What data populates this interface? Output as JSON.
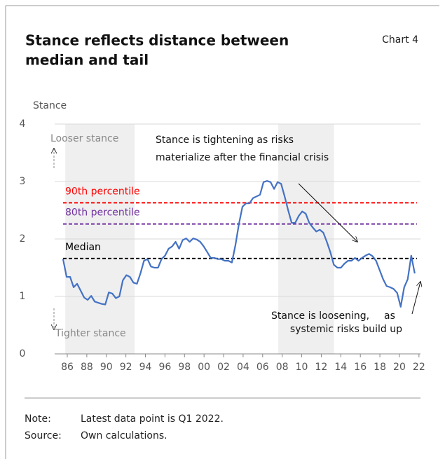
{
  "chart_data": {
    "type": "line",
    "title": [
      "Stance reflects distance between",
      "median and tail"
    ],
    "chart_label": "Chart 4",
    "y_label": "Stance",
    "x": [
      1985.57,
      1985.93,
      1986.29,
      1986.65,
      1987.01,
      1987.37,
      1987.73,
      1988.09,
      1988.45,
      1988.81,
      1989.17,
      1989.53,
      1989.89,
      1990.25,
      1990.61,
      1990.97,
      1991.33,
      1991.69,
      1992.05,
      1992.41,
      1992.77,
      1993.13,
      1993.49,
      1993.85,
      1994.21,
      1994.57,
      1994.93,
      1995.29,
      1995.65,
      1996.01,
      1996.37,
      1996.73,
      1997.09,
      1997.45,
      1997.81,
      1998.17,
      1998.53,
      1998.89,
      1999.25,
      1999.61,
      1999.97,
      2000.33,
      2000.69,
      2001.05,
      2001.41,
      2001.77,
      2002.13,
      2002.49,
      2002.85,
      2003.21,
      2003.57,
      2003.93,
      2004.29,
      2004.65,
      2005.01,
      2005.37,
      2005.73,
      2006.09,
      2006.45,
      2006.81,
      2007.17,
      2007.53,
      2007.89,
      2008.25,
      2008.61,
      2008.97,
      2009.33,
      2009.69,
      2010.05,
      2010.41,
      2010.77,
      2011.13,
      2011.49,
      2011.85,
      2012.21,
      2012.57,
      2012.93,
      2013.29,
      2013.65,
      2014.01,
      2014.37,
      2014.73,
      2015.09,
      2015.45,
      2015.81,
      2016.17,
      2016.53,
      2016.89,
      2017.25,
      2017.61,
      2017.97,
      2018.33,
      2018.69,
      2019.05,
      2019.41,
      2019.77,
      2020.13,
      2020.49,
      2020.85,
      2021.21,
      2021.57
    ],
    "series": [
      {
        "color": "#4472c4",
        "values": [
          1.65,
          1.34,
          1.34,
          1.16,
          1.22,
          1.1,
          0.98,
          0.94,
          1.01,
          0.91,
          0.89,
          0.87,
          0.86,
          1.07,
          1.05,
          0.97,
          1.0,
          1.28,
          1.37,
          1.34,
          1.24,
          1.22,
          1.4,
          1.62,
          1.65,
          1.52,
          1.5,
          1.5,
          1.65,
          1.71,
          1.83,
          1.87,
          1.95,
          1.83,
          1.98,
          2.01,
          1.95,
          2.01,
          1.99,
          1.95,
          1.87,
          1.77,
          1.67,
          1.67,
          1.65,
          1.65,
          1.62,
          1.62,
          1.59,
          1.89,
          2.26,
          2.56,
          2.62,
          2.62,
          2.71,
          2.74,
          2.77,
          2.99,
          3.01,
          2.99,
          2.87,
          2.99,
          2.96,
          2.74,
          2.5,
          2.28,
          2.28,
          2.4,
          2.48,
          2.44,
          2.28,
          2.2,
          2.13,
          2.16,
          2.11,
          1.95,
          1.77,
          1.55,
          1.5,
          1.5,
          1.57,
          1.62,
          1.62,
          1.67,
          1.62,
          1.67,
          1.71,
          1.74,
          1.7,
          1.62,
          1.46,
          1.3,
          1.18,
          1.16,
          1.13,
          1.06,
          0.82,
          1.16,
          1.3,
          1.71,
          1.4
        ]
      }
    ],
    "reference_lines": [
      {
        "name": "90th percentile",
        "value": 2.63,
        "color": "#ff0000"
      },
      {
        "name": "80th percentile",
        "value": 2.26,
        "color": "#7030a0"
      },
      {
        "name": "Median",
        "value": 1.66,
        "color": "#000000"
      }
    ],
    "shaded_ranges": [
      [
        1985.8,
        1992.9
      ],
      [
        2007.6,
        2013.3
      ]
    ],
    "xlim": [
      1984.7,
      2022.2
    ],
    "xticks": [
      {
        "value": 1986,
        "label": "86"
      },
      {
        "value": 1988,
        "label": "88"
      },
      {
        "value": 1990,
        "label": "90"
      },
      {
        "value": 1992,
        "label": "92"
      },
      {
        "value": 1994,
        "label": "94"
      },
      {
        "value": 1996,
        "label": "96"
      },
      {
        "value": 1998,
        "label": "98"
      },
      {
        "value": 2000,
        "label": "00"
      },
      {
        "value": 2002,
        "label": "02"
      },
      {
        "value": 2004,
        "label": "04"
      },
      {
        "value": 2006,
        "label": "06"
      },
      {
        "value": 2008,
        "label": "08"
      },
      {
        "value": 2010,
        "label": "10"
      },
      {
        "value": 2012,
        "label": "12"
      },
      {
        "value": 2014,
        "label": "14"
      },
      {
        "value": 2016,
        "label": "16"
      },
      {
        "value": 2018,
        "label": "18"
      },
      {
        "value": 2020,
        "label": "20"
      },
      {
        "value": 2022,
        "label": "22"
      }
    ],
    "ylim": [
      0,
      4
    ],
    "yticks": [
      0,
      1,
      2,
      3,
      4
    ],
    "grid": true,
    "annotations": {
      "looser": "Looser stance",
      "tighter": "Tighter stance",
      "tightening": [
        "Stance is tightening as risks",
        "materialize after the financial crisis"
      ],
      "loosening": [
        "Stance is loosening,",
        "as",
        "systemic risks build up"
      ]
    },
    "note_label": "Note:",
    "note": "Latest data point is Q1 2022.",
    "source_label": "Source:",
    "source": "Own calculations."
  }
}
